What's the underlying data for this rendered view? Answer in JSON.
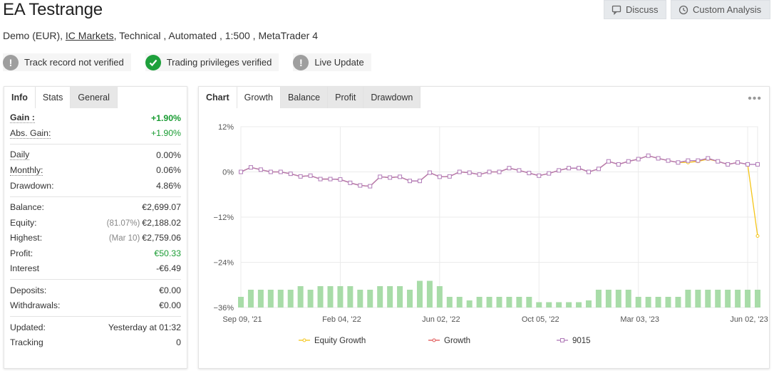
{
  "header": {
    "title": "EA Testrange",
    "subtitle_prefix": "Demo (EUR),",
    "broker_link": "IC Markets",
    "subtitle_suffix": ", Technical , Automated , 1:500 , MetaTrader 4"
  },
  "actions": {
    "discuss_label": "Discuss",
    "custom_analysis_label": "Custom Analysis"
  },
  "badges": [
    {
      "label": "Track record not verified",
      "icon": "exclamation-icon",
      "color": "#9e9e9e"
    },
    {
      "label": "Trading privileges verified",
      "icon": "check-icon",
      "color": "#1ea03c"
    },
    {
      "label": "Live Update",
      "icon": "exclamation-icon",
      "color": "#9e9e9e"
    }
  ],
  "left_panel": {
    "tabs": [
      "Info",
      "Stats",
      "General"
    ],
    "active_tab": "Stats",
    "stats": {
      "gain_label": "Gain :",
      "gain_value": "+1.90%",
      "abs_gain_label": "Abs. Gain:",
      "abs_gain_value": "+1.90%",
      "daily_label": "Daily",
      "daily_value": "0.00%",
      "monthly_label": "Monthly:",
      "monthly_value": "0.06%",
      "drawdown_label": "Drawdown:",
      "drawdown_value": "4.86%",
      "balance_label": "Balance:",
      "balance_value": "€2,699.07",
      "equity_label": "Equity:",
      "equity_note": "(81.07%)",
      "equity_value": "€2,188.02",
      "highest_label": "Highest:",
      "highest_note": "(Mar 10)",
      "highest_value": "€2,759.06",
      "profit_label": "Profit:",
      "profit_value": "€50.33",
      "interest_label": "Interest",
      "interest_value": "-€6.49",
      "deposits_label": "Deposits:",
      "deposits_value": "€0.00",
      "withdrawals_label": "Withdrawals:",
      "withdrawals_value": "€0.00",
      "updated_label": "Updated:",
      "updated_value": "Yesterday at 01:32",
      "tracking_label": "Tracking",
      "tracking_value": "0"
    }
  },
  "right_panel": {
    "tabs": [
      "Chart",
      "Growth",
      "Balance",
      "Profit",
      "Drawdown"
    ],
    "active_tab": "Growth"
  },
  "chart_data": {
    "type": "line",
    "title": "",
    "xlabel": "",
    "ylabel": "",
    "ylim": [
      -36,
      12
    ],
    "y_ticks": [
      "12%",
      "0%",
      "−12%",
      "−24%",
      "−36%"
    ],
    "y_tick_values": [
      12,
      0,
      -12,
      -24,
      -36
    ],
    "x_tick_labels": [
      "Sep 09, '21",
      "Feb 04, '22",
      "Jun 02, '22",
      "Oct 05, '22",
      "Mar 03, '23",
      "Jun 02, '23"
    ],
    "grid": true,
    "legend_position": "bottom",
    "colors": {
      "equity": "#f5c518",
      "growth": "#e05555",
      "series_9015": "#b07ab8",
      "bars": "#a8dca8"
    },
    "series": [
      {
        "name": "Growth",
        "values": [
          0,
          1.2,
          0.6,
          0,
          0,
          -0.5,
          -1.2,
          -1,
          -1.9,
          -1.9,
          -2,
          -2.9,
          -3.6,
          -3.8,
          -1.3,
          -1.5,
          -1.3,
          -2.4,
          -2.4,
          -0.2,
          -1.3,
          -1.2,
          0,
          -0.2,
          -0.7,
          0,
          0,
          1,
          0.4,
          -0.3,
          -1,
          -0.4,
          0.4,
          1,
          1,
          0,
          0.8,
          2.8,
          2,
          2.8,
          3.4,
          4.3,
          3.6,
          3,
          2.5,
          3,
          3,
          3.6,
          2.8,
          2,
          2.5,
          2
        ],
        "end_index": 51
      },
      {
        "name": "Equity Growth",
        "values": [
          0,
          1.2,
          0.6,
          0,
          0,
          -0.5,
          -1.2,
          -1,
          -1.9,
          -1.9,
          -2,
          -2.9,
          -3.6,
          -3.8,
          -1.3,
          -1.5,
          -1.3,
          -2.4,
          -2.4,
          -0.2,
          -1.3,
          -1.2,
          0,
          -0.2,
          -0.7,
          0,
          0,
          1,
          0.4,
          -0.3,
          -1,
          -0.4,
          0.4,
          1,
          1,
          0,
          0.8,
          2.8,
          2,
          2.8,
          3.4,
          4.3,
          3.6,
          3,
          2.5,
          2.5,
          2.8,
          3.4,
          2.8,
          2,
          2.5,
          2,
          -17
        ],
        "end_index": 52
      },
      {
        "name": "9015",
        "values": [
          0,
          1.2,
          0.6,
          0,
          0,
          -0.5,
          -1.2,
          -1,
          -1.9,
          -1.9,
          -2,
          -2.9,
          -3.6,
          -3.8,
          -1.3,
          -1.5,
          -1.3,
          -2.4,
          -2.4,
          -0.2,
          -1.3,
          -1.2,
          0,
          -0.2,
          -0.7,
          0,
          0,
          1,
          0.4,
          -0.3,
          -1,
          -0.4,
          0.4,
          1,
          1,
          0,
          0.8,
          2.8,
          2,
          2.8,
          3.4,
          4.3,
          3.6,
          3,
          2.5,
          3,
          3,
          3.6,
          2.8,
          2,
          2.5,
          2,
          2
        ],
        "end_index": 52
      }
    ],
    "bar_heights": [
      3,
      5,
      5,
      5,
      5,
      5,
      6,
      5,
      6,
      6,
      6,
      6,
      5,
      5,
      6,
      6,
      6,
      5,
      7.5,
      7.5,
      6,
      3,
      3,
      2,
      3,
      3,
      3,
      3,
      3,
      3,
      1.5,
      1.5,
      1.5,
      1.5,
      1.5,
      2,
      5,
      5,
      5,
      5,
      3,
      3,
      3,
      3,
      3,
      5,
      5,
      5,
      5,
      5,
      5,
      5,
      5
    ],
    "legend": [
      "Equity Growth",
      "Growth",
      "9015"
    ]
  }
}
